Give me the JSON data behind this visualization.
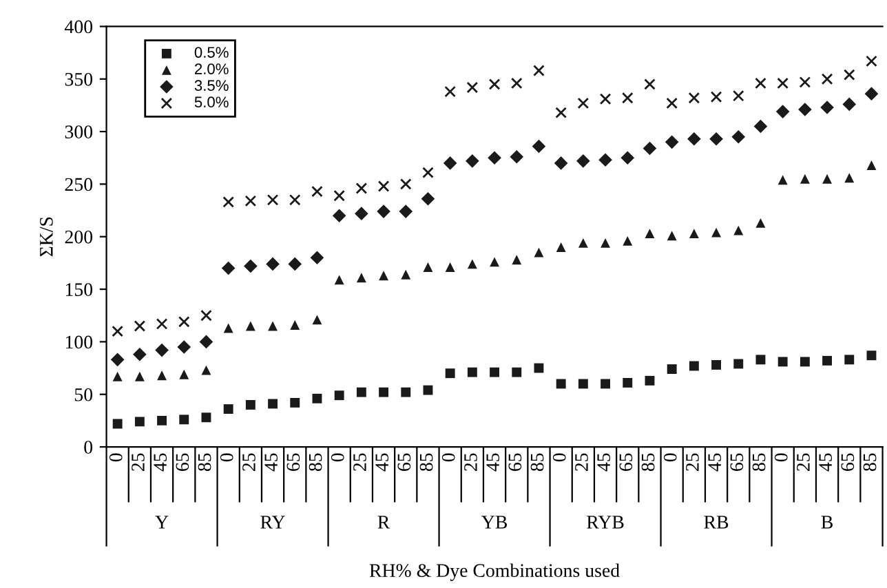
{
  "chart_data": {
    "type": "scatter",
    "xlabel": "RH% & Dye Combinations used",
    "ylabel": "ΣK/S",
    "categories": [
      "0",
      "25",
      "45",
      "65",
      "85",
      "0",
      "25",
      "45",
      "65",
      "85",
      "0",
      "25",
      "45",
      "65",
      "85",
      "0",
      "25",
      "45",
      "65",
      "85",
      "0",
      "25",
      "45",
      "65",
      "85",
      "0",
      "25",
      "45",
      "65",
      "85",
      "0",
      "25",
      "45",
      "65",
      "85"
    ],
    "annotations": [
      "Y",
      "RY",
      "R",
      "YB",
      "RYB",
      "RB",
      "B"
    ],
    "ylim": [
      0,
      400
    ],
    "yticks": [
      0,
      50,
      100,
      150,
      200,
      250,
      300,
      350,
      400
    ],
    "grid": false,
    "legend": "top left",
    "series": [
      {
        "name": "0.5%",
        "color": "#1a1a1a",
        "marker": "square",
        "values": [
          22,
          24,
          25,
          26,
          28,
          36,
          40,
          41,
          42,
          46,
          49,
          52,
          52,
          52,
          54,
          70,
          71,
          71,
          71,
          75,
          60,
          60,
          60,
          61,
          63,
          74,
          77,
          78,
          79,
          83,
          81,
          81,
          82,
          83,
          87
        ]
      },
      {
        "name": "2.0%",
        "color": "#1a1a1a",
        "marker": "triangle",
        "values": [
          67,
          67,
          68,
          69,
          73,
          113,
          115,
          115,
          116,
          121,
          159,
          161,
          163,
          164,
          171,
          171,
          174,
          176,
          178,
          185,
          190,
          194,
          194,
          196,
          203,
          201,
          203,
          204,
          206,
          213,
          254,
          255,
          255,
          256,
          268
        ]
      },
      {
        "name": "3.5%",
        "color": "#1a1a1a",
        "marker": "diamond",
        "values": [
          83,
          88,
          92,
          95,
          100,
          170,
          172,
          174,
          174,
          180,
          220,
          222,
          224,
          224,
          236,
          270,
          272,
          275,
          276,
          286,
          270,
          272,
          273,
          275,
          284,
          290,
          293,
          293,
          295,
          305,
          319,
          321,
          323,
          326,
          336
        ]
      },
      {
        "name": "5.0%",
        "color": "#1a1a1a",
        "marker": "cross",
        "values": [
          110,
          115,
          117,
          119,
          125,
          233,
          234,
          235,
          235,
          243,
          239,
          246,
          248,
          250,
          261,
          338,
          342,
          345,
          346,
          358,
          318,
          327,
          331,
          332,
          345,
          327,
          332,
          333,
          334,
          346,
          346,
          347,
          350,
          354,
          367
        ]
      }
    ]
  }
}
